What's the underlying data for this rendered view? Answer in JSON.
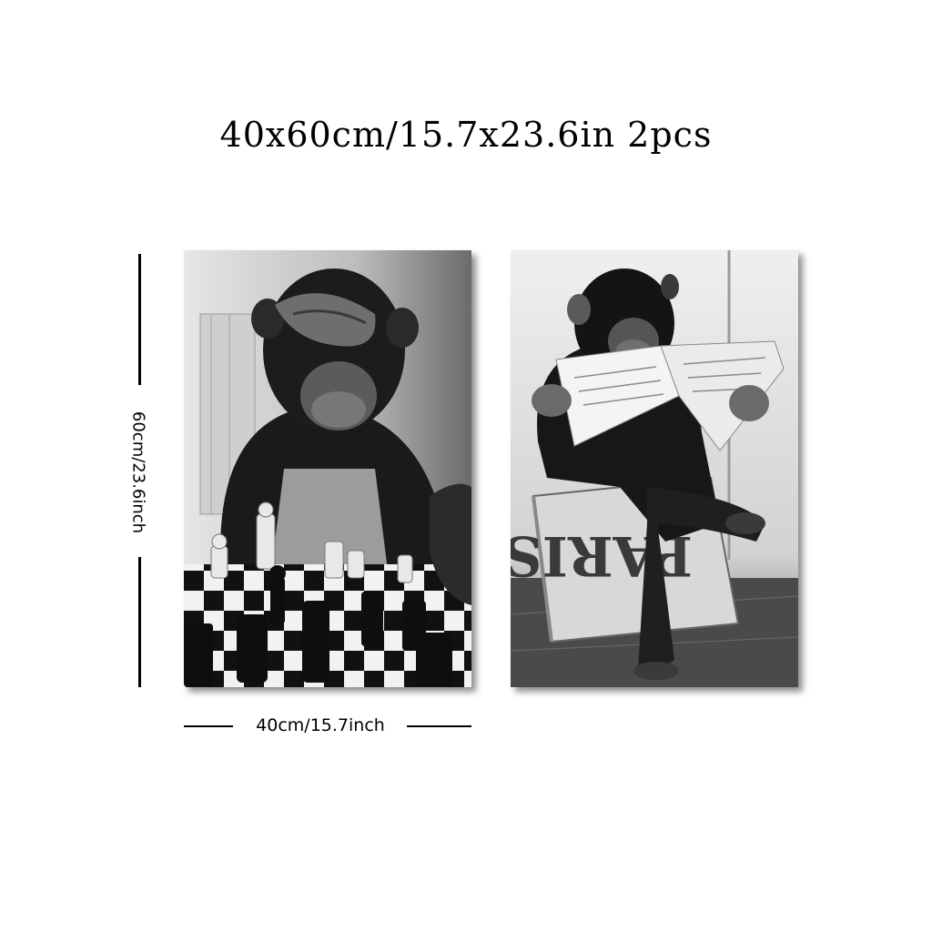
{
  "title": "40x60cm/15.7x23.6in 2pcs",
  "dimensions": {
    "height_label": "60cm/23.6inch",
    "width_label": "40cm/15.7inch"
  },
  "panels": [
    {
      "subject": "chimpanzee playing chess",
      "style": "black-and-white photo"
    },
    {
      "subject": "chimpanzee reading newspaper on crate",
      "crate_text": "PARIS",
      "style": "black-and-white photo"
    }
  ]
}
